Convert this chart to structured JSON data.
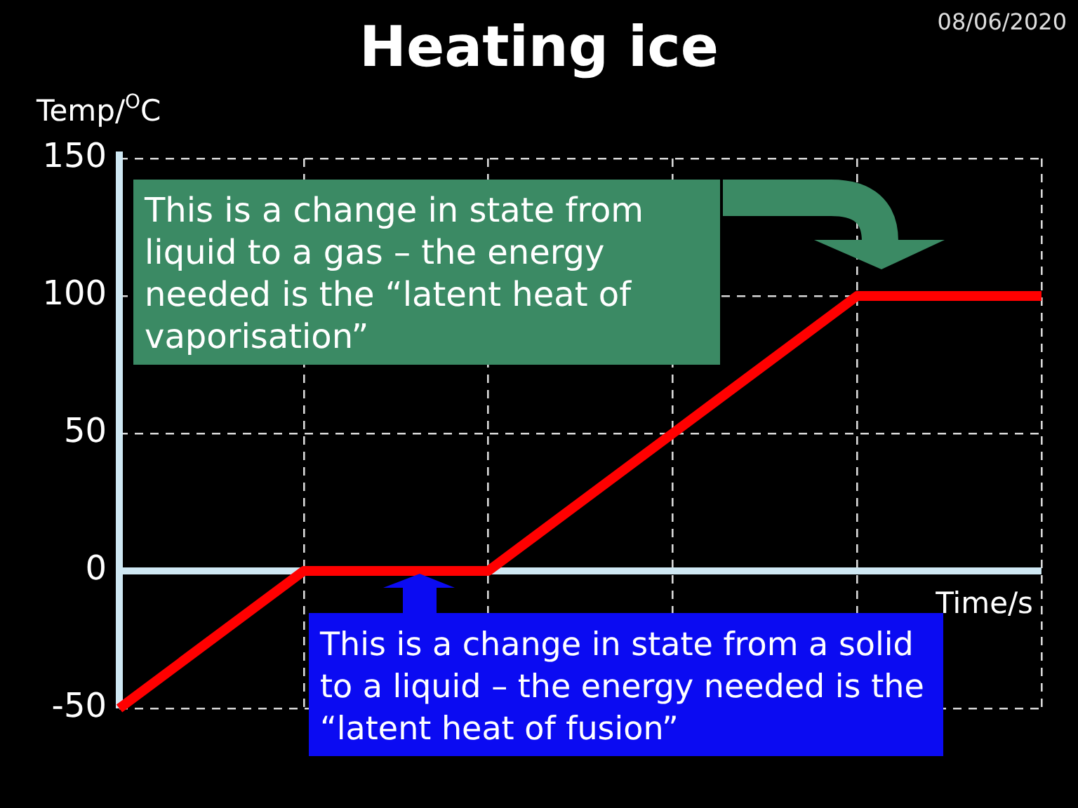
{
  "chart_data": {
    "type": "line",
    "title": "Heating ice",
    "xlabel": "Time/s",
    "ylabel": "Temp/$^{O}$C",
    "annotations": [
      "08/06/2020",
      "This is a change in state from liquid to a gas – the energy needed is the “latent heat of vaporisation”",
      "This is a change in state from a solid to a liquid – the energy needed is the “latent heat of fusion”"
    ],
    "categories": [
      null,
      null,
      null,
      null,
      null,
      null
    ],
    "values": [
      -50,
      0,
      0,
      50,
      100,
      100
    ],
    "color": "#ff0000",
    "ylim": [
      -50,
      150
    ],
    "yticks": [
      -50,
      0,
      50,
      100,
      150
    ],
    "grid": true,
    "tick_labels": "y",
    "marker": "none",
    "line_style": "solid"
  }
}
